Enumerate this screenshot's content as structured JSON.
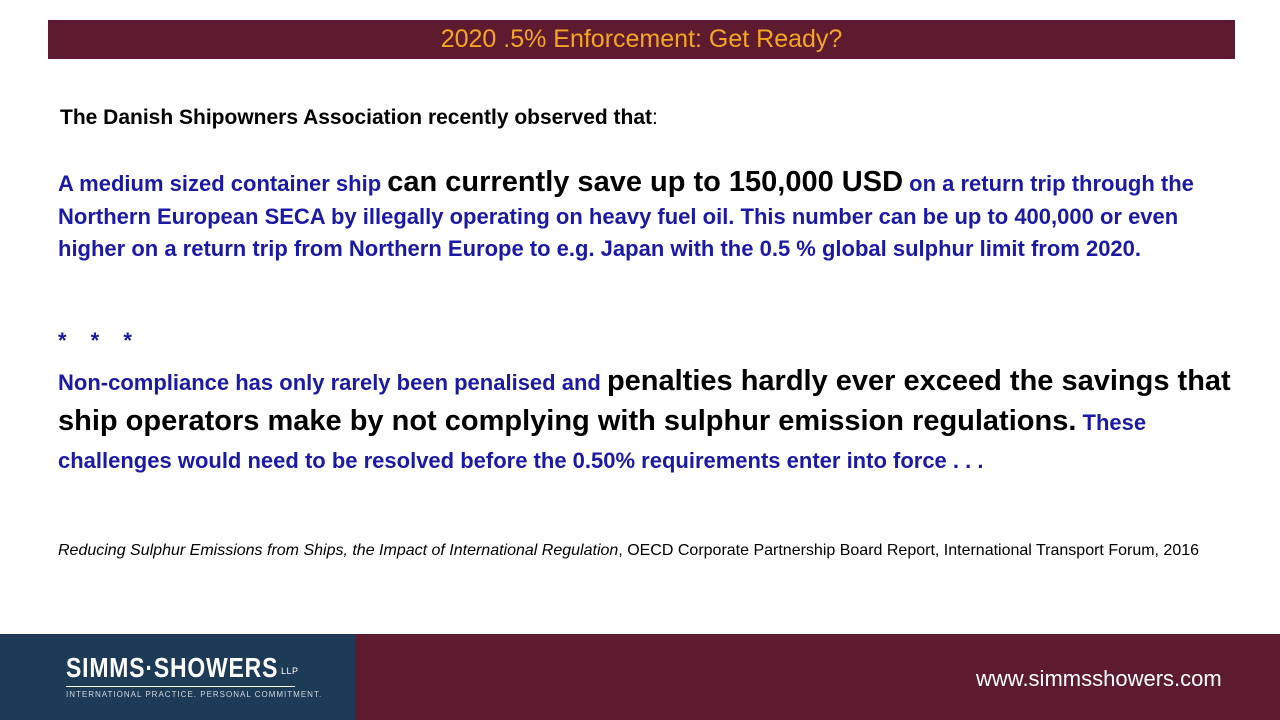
{
  "title": "2020 .5% Enforcement: Get Ready?",
  "intro": {
    "text": "The Danish Shipowners Association recently observed that",
    "colon": ":"
  },
  "paragraph1": {
    "part1": "A medium sized container ship ",
    "emphasis": "can currently save up to 150,000 USD",
    "part2": " on a return trip through the Northern European SECA by illegally operating on heavy fuel oil. This number can be up to 400,000 or even higher on a return trip from Northern Europe to e.g. Japan with the 0.5 % global sulphur limit from 2020."
  },
  "separator": "* * *",
  "paragraph2": {
    "part1": "Non-compliance has only rarely been penalised and ",
    "emphasis": "penalties hardly ever exceed the savings that ship operators make by not complying with sulphur emission regulations.",
    "part2": " These challenges would need to be resolved before the 0.50% requirements enter into force . . ."
  },
  "citation": {
    "title": "Reducing Sulphur Emissions from Ships, the Impact of International Regulation",
    "rest": ", OECD Corporate Partnership Board Report, International Transport Forum, 2016"
  },
  "footer": {
    "logo_name": "SIMMS·SHOWERS",
    "logo_suffix": "LLP",
    "logo_tagline": "INTERNATIONAL PRACTICE. PERSONAL COMMITMENT.",
    "website": "www.simmsshowers.com"
  },
  "colors": {
    "brand_maroon": "#5e1a2e",
    "brand_navy": "#1d3a57",
    "title_text": "#f5a623",
    "body_blue": "#1a1aa6"
  }
}
